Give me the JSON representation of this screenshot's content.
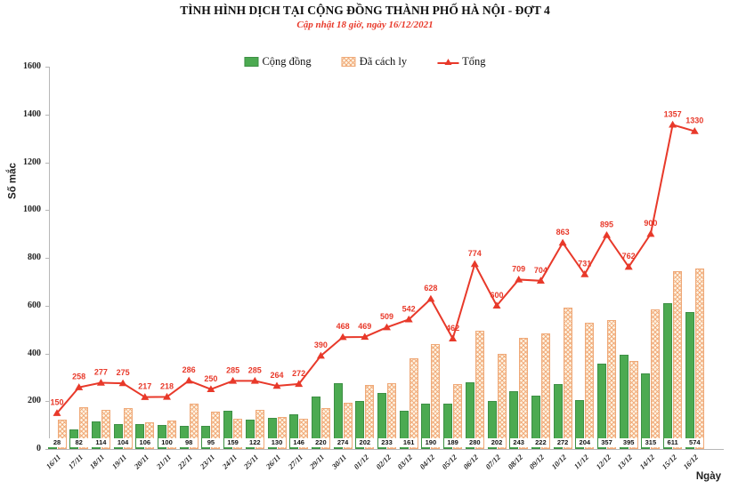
{
  "title": "TÌNH HÌNH DỊCH TẠI CỘNG ĐỒNG THÀNH PHỐ HÀ NỘI - ĐỢT 4",
  "subtitle": "Cập nhật 18 giờ, ngày 16/12/2021",
  "legend": {
    "community": "Cộng đồng",
    "quarantined": "Đã cách ly",
    "total": "Tổng"
  },
  "axes": {
    "y_label": "Số mắc",
    "x_label": "Ngày",
    "y_ticks": [
      0,
      200,
      400,
      600,
      800,
      1000,
      1200,
      1400,
      1600
    ]
  },
  "colors": {
    "green_bar": "#4caa51",
    "green_border": "#3d8f44",
    "hatch_fill": "#fdf3e2",
    "hatch_stroke": "#efa978",
    "red_line": "#e8392a",
    "axis_gray": "#b7b7b7"
  },
  "chart_data": {
    "type": "bar",
    "title": "TÌNH HÌNH DỊCH TẠI CỘNG ĐỒNG THÀNH PHỐ HÀ NỘI - ĐỢT 4",
    "xlabel": "Ngày",
    "ylabel": "Số mắc",
    "ylim": [
      0,
      1600
    ],
    "grid": false,
    "legend_position": "top",
    "categories": [
      "16/11",
      "17/11",
      "18/11",
      "19/11",
      "20/11",
      "21/11",
      "22/11",
      "23/11",
      "24/11",
      "25/11",
      "26/11",
      "27/11",
      "29/11",
      "30/11",
      "01/12",
      "02/12",
      "03/12",
      "04/12",
      "05/12",
      "06/12",
      "07/12",
      "08/12",
      "09/12",
      "10/12",
      "11/12",
      "12/12",
      "13/12",
      "14/12",
      "15/12",
      "16/12"
    ],
    "series": [
      {
        "name": "Cộng đồng",
        "render": "bar",
        "values": [
          28,
          82,
          114,
          104,
          106,
          100,
          98,
          95,
          159,
          122,
          130,
          146,
          220,
          274,
          202,
          233,
          161,
          190,
          189,
          280,
          202,
          243,
          222,
          272,
          204,
          357,
          395,
          315,
          611,
          574
        ]
      },
      {
        "name": "Đã cách ly",
        "render": "bar",
        "values": [
          122,
          176,
          163,
          171,
          111,
          118,
          188,
          155,
          126,
          163,
          134,
          126,
          170,
          194,
          267,
          276,
          381,
          438,
          273,
          494,
          398,
          466,
          482,
          591,
          527,
          538,
          367,
          585,
          746,
          756
        ]
      },
      {
        "name": "Tổng",
        "render": "line",
        "values": [
          150,
          258,
          277,
          275,
          217,
          218,
          286,
          250,
          285,
          285,
          264,
          272,
          390,
          468,
          469,
          509,
          542,
          628,
          462,
          774,
          600,
          709,
          704,
          863,
          731,
          895,
          762,
          900,
          1357,
          1330
        ]
      }
    ]
  }
}
